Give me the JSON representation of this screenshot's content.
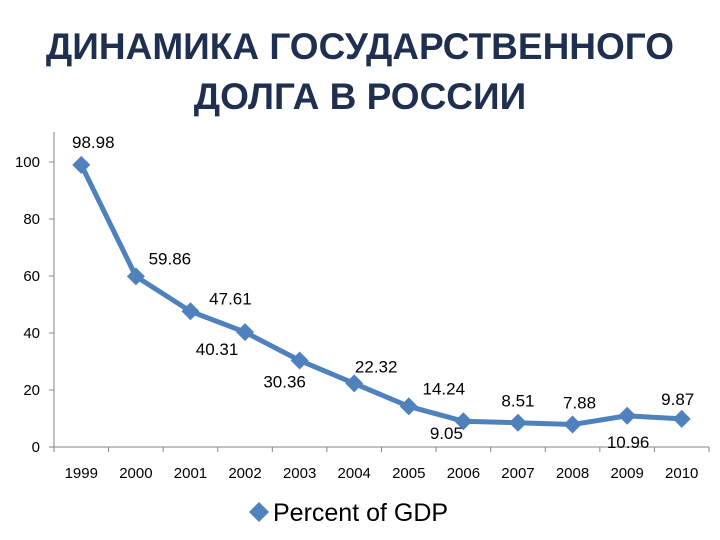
{
  "title": {
    "line1": "ДИНАМИКА ГОСУДАРСТВЕННОГО",
    "line2": "ДОЛГА В РОССИИ"
  },
  "colors": {
    "series": "#4f81bd",
    "title": "#1f2f4f",
    "axis": "#868686"
  },
  "chart_data": {
    "type": "line",
    "title": "ДИНАМИКА ГОСУДАРСТВЕННОГО ДОЛГА В РОССИИ",
    "categories": [
      "1999",
      "2000",
      "2001",
      "2002",
      "2003",
      "2004",
      "2005",
      "2006",
      "2007",
      "2008",
      "2009",
      "2010"
    ],
    "series": [
      {
        "name": "Percent of GDP",
        "values": [
          98.98,
          59.86,
          47.61,
          40.31,
          30.36,
          22.32,
          14.24,
          9.05,
          8.51,
          7.88,
          10.96,
          9.87
        ],
        "labels": [
          "98.98",
          "59.86",
          "47.61",
          "40.31",
          "30.36",
          "22.32",
          "14.24",
          "9.05",
          "8.51",
          "7.88",
          "10.96",
          "9.87"
        ],
        "marker": "diamond"
      }
    ],
    "ylim": [
      0,
      100
    ],
    "yticks": [
      "0",
      "20",
      "40",
      "60",
      "80",
      "100"
    ],
    "xlabel": "",
    "ylabel": "",
    "grid": false,
    "legend": "bottom"
  }
}
